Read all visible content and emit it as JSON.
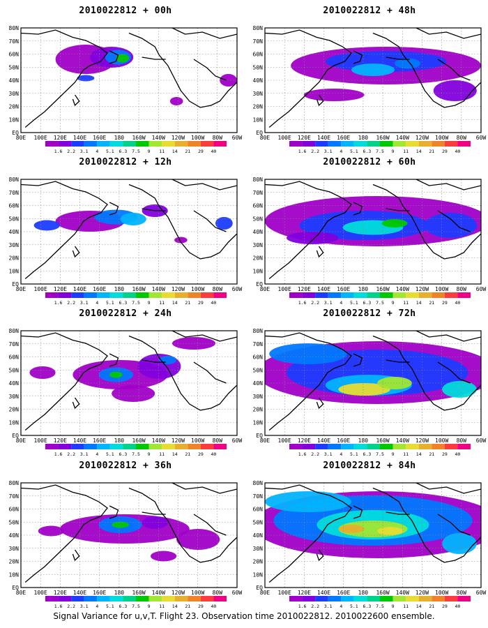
{
  "panels": [
    {
      "title": "2010022812 + 00h",
      "hours": 0
    },
    {
      "title": "2010022812 + 48h",
      "hours": 48
    },
    {
      "title": "2010022812 + 12h",
      "hours": 12
    },
    {
      "title": "2010022812 + 60h",
      "hours": 60
    },
    {
      "title": "2010022812 + 24h",
      "hours": 24
    },
    {
      "title": "2010022812 + 72h",
      "hours": 72
    },
    {
      "title": "2010022812 + 36h",
      "hours": 36
    },
    {
      "title": "2010022812 + 84h",
      "hours": 84
    }
  ],
  "map": {
    "lat_labels": [
      "80N",
      "70N",
      "60N",
      "50N",
      "40N",
      "30N",
      "20N",
      "10N",
      "EQ"
    ],
    "lon_labels": [
      "80E",
      "100E",
      "120E",
      "140E",
      "160E",
      "180",
      "160W",
      "140W",
      "120W",
      "100W",
      "80W",
      "60W"
    ]
  },
  "colorbar": {
    "levels": [
      "1.6",
      "2.2",
      "3.1",
      "4",
      "5.1",
      "6.3",
      "7.5",
      "9",
      "11",
      "14",
      "21",
      "29",
      "40"
    ],
    "colors": [
      "#a000c8",
      "#8200dc",
      "#1e3cff",
      "#0078ff",
      "#00b4ff",
      "#00dcdc",
      "#00d28c",
      "#00c800",
      "#a0e632",
      "#e6dc32",
      "#e6af2d",
      "#f08228",
      "#fa3c3c",
      "#f00082"
    ]
  },
  "caption": "Signal Variance for u,v,T. Flight 23. Observation time 2010022812. 2010022600 ensemble."
}
